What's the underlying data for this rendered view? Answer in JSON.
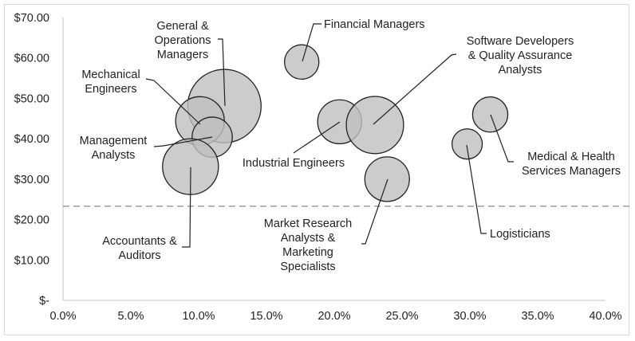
{
  "chart_data": {
    "type": "bubble",
    "title": "",
    "xlabel": "",
    "ylabel": "",
    "xlim": [
      0,
      40
    ],
    "ylim": [
      0,
      70
    ],
    "x_ticks": [
      "0.0%",
      "5.0%",
      "10.0%",
      "15.0%",
      "20.0%",
      "25.0%",
      "30.0%",
      "35.0%",
      "40.0%"
    ],
    "x_tick_values": [
      0,
      5,
      10,
      15,
      20,
      25,
      30,
      35,
      40
    ],
    "y_ticks": [
      "$-",
      "$10.00",
      "$20.00",
      "$30.00",
      "$40.00",
      "$50.00",
      "$60.00",
      "$70.00"
    ],
    "y_tick_values": [
      0,
      10,
      20,
      30,
      40,
      50,
      60,
      70
    ],
    "grid": false,
    "reference_line": {
      "y": 23.3,
      "style": "dashed",
      "color": "#a6a6a6"
    },
    "bubble_fill": "#bfbfbf",
    "bubble_stroke": "#222222",
    "size_note_relative": true,
    "points": [
      {
        "label": [
          "General &",
          "Operations",
          "Managers"
        ],
        "x": 11.9,
        "y": 48.1,
        "size": 100
      },
      {
        "label": [
          "Mechanical",
          "Engineers"
        ],
        "x": 10.1,
        "y": 44.4,
        "size": 44
      },
      {
        "label": [
          "Management",
          "Analysts"
        ],
        "x": 11.0,
        "y": 40.4,
        "size": 30
      },
      {
        "label": [
          "Accountants &",
          "Auditors"
        ],
        "x": 9.4,
        "y": 33.1,
        "size": 58
      },
      {
        "label": [
          "Financial Managers"
        ],
        "x": 17.6,
        "y": 59.0,
        "size": 22
      },
      {
        "label": [
          "Industrial Engineers"
        ],
        "x": 20.4,
        "y": 44.2,
        "size": 36
      },
      {
        "label": [
          "Software Developers",
          "& Quality Assurance",
          "Analysts"
        ],
        "x": 23.0,
        "y": 43.4,
        "size": 61
      },
      {
        "label": [
          "Market Research",
          "Analysts &",
          "Marketing",
          "Specialists"
        ],
        "x": 23.9,
        "y": 30.0,
        "size": 37
      },
      {
        "label": [
          "Logisticians"
        ],
        "x": 29.8,
        "y": 38.7,
        "size": 17
      },
      {
        "label": [
          "Medical & Health",
          "Services Managers"
        ],
        "x": 31.5,
        "y": 46.0,
        "size": 23
      }
    ]
  }
}
